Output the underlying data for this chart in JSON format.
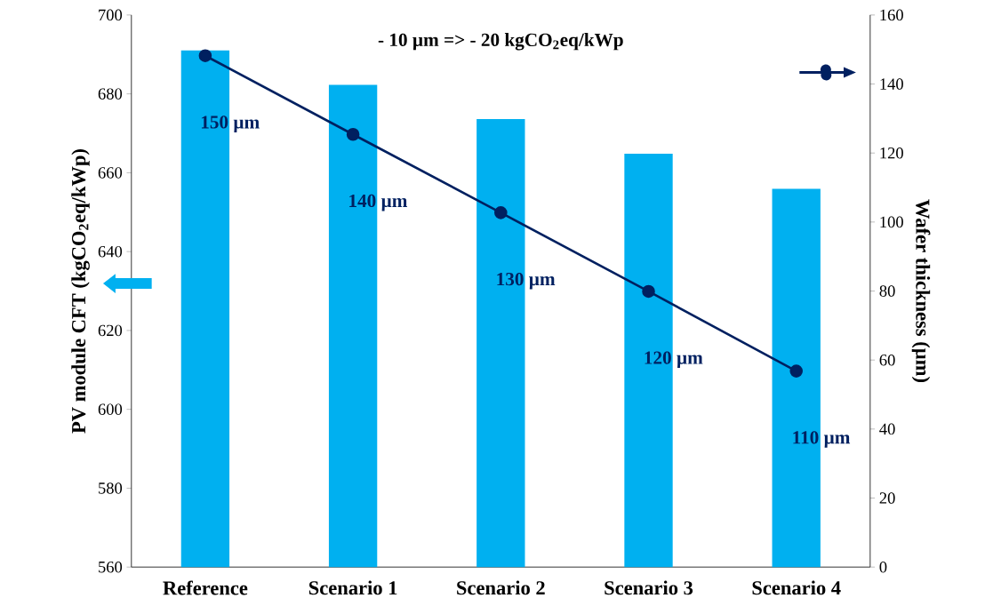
{
  "chart_data": {
    "type": "bar",
    "categories": [
      "Reference",
      "Scenario 1",
      "Scenario 2",
      "Scenario 3",
      "Scenario 4"
    ],
    "series": [
      {
        "color": "#00b0f0",
        "values": [
          691,
          682.3,
          673.6,
          664.8,
          655.9
        ]
      },
      {
        "type": "line",
        "axis": "y2",
        "color": "#002060",
        "marker": "circle",
        "values": [
          148.2,
          125.4,
          102.7,
          79.9,
          56.8
        ]
      }
    ],
    "ylabel": "PV module  CFT (kgCO$_{2}$eq/kWp)",
    "y2label": "Wafer  thickness (µm)",
    "ylim": [
      560,
      700
    ],
    "yticks": [
      560,
      580,
      600,
      620,
      640,
      660,
      680,
      700
    ],
    "y2lim": [
      0,
      160
    ],
    "y2ticks": [
      0,
      20,
      40,
      60,
      80,
      100,
      120,
      140,
      160
    ],
    "annotations": [
      "- 10 µm => - 20 kgCO$_{2}$eq/kWp",
      "150 µm",
      "140 µm",
      "130 µm",
      "120 µm",
      "110 µm"
    ]
  }
}
